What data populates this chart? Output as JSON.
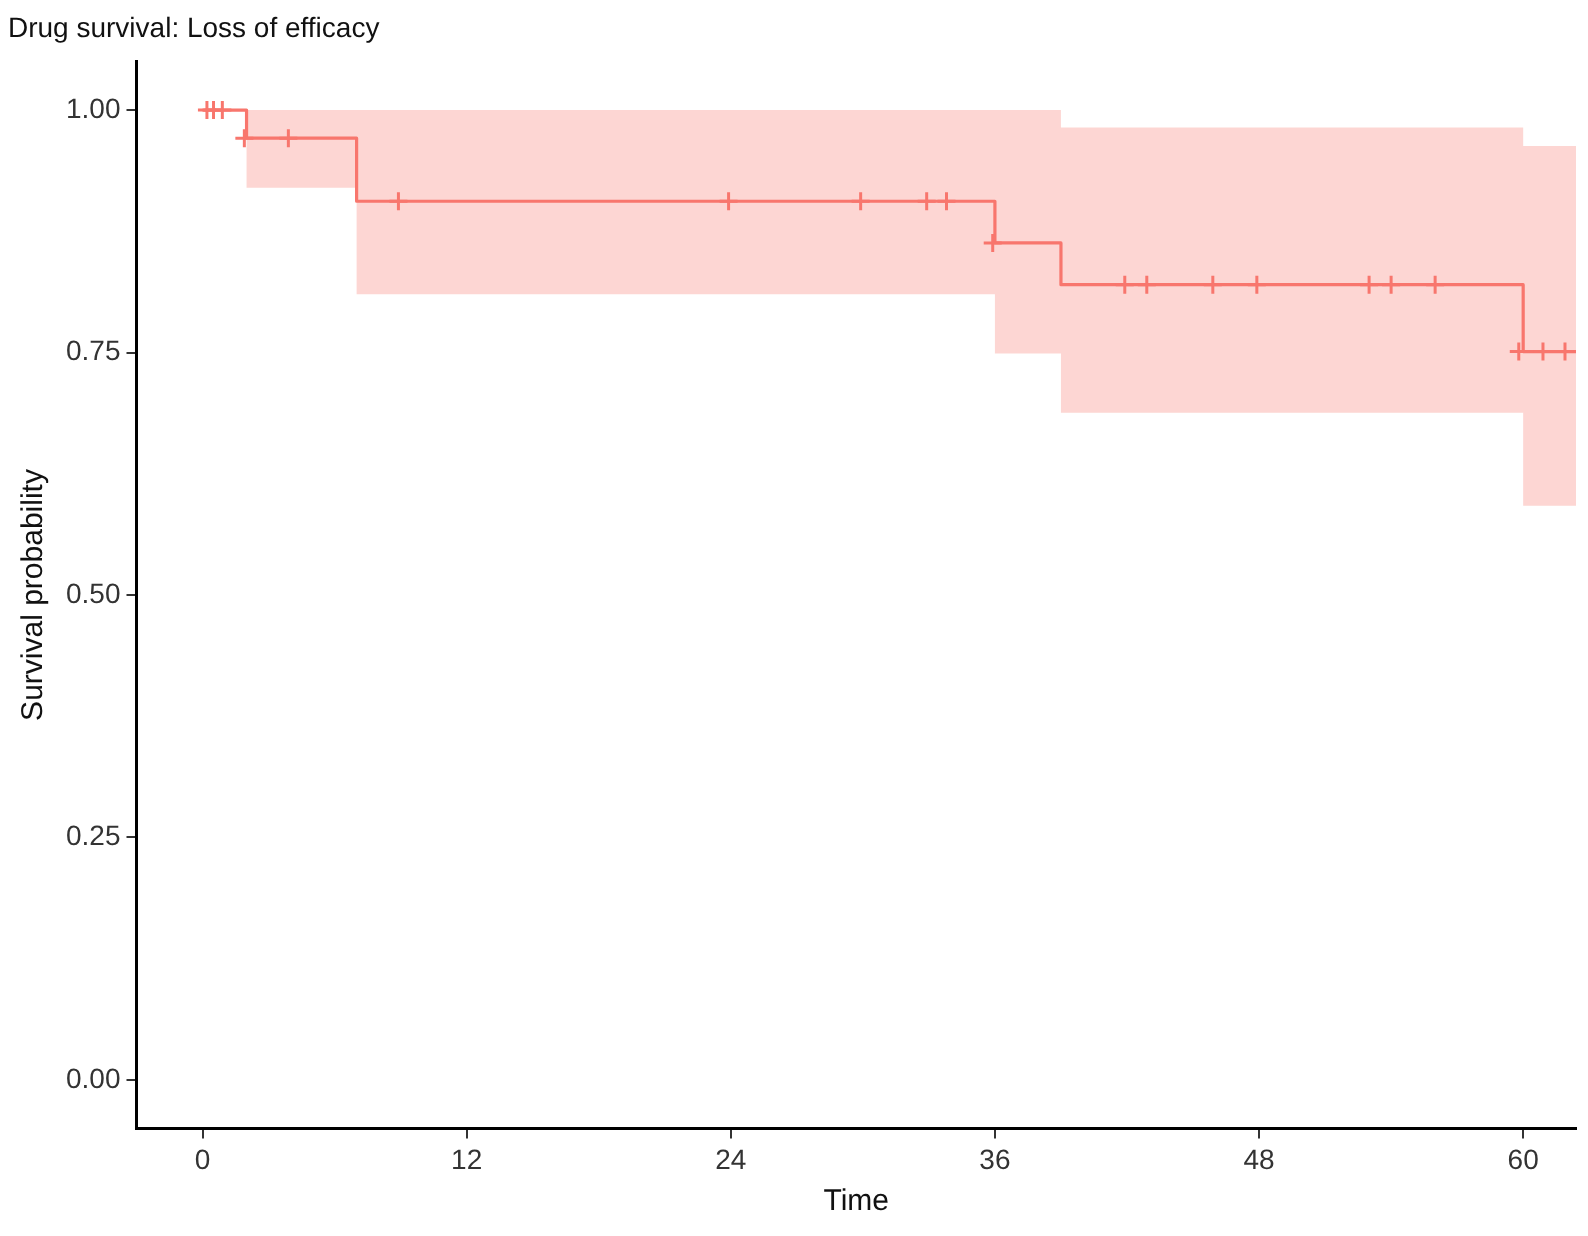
{
  "chart_data": {
    "type": "step",
    "title": "Drug survival: Loss of efficacy",
    "xlabel": "Time",
    "ylabel": "Survival probability",
    "xlim": [
      -3,
      62.4
    ],
    "ylim": [
      -0.05,
      1.05
    ],
    "xticks": [
      0,
      12,
      24,
      36,
      48,
      60
    ],
    "yticks": [
      {
        "value": 0,
        "label": "0.00"
      },
      {
        "value": 0.25,
        "label": "0.25"
      },
      {
        "value": 0.5,
        "label": "0.50"
      },
      {
        "value": 0.75,
        "label": "0.75"
      },
      {
        "value": 1,
        "label": "1.00"
      }
    ],
    "grid": false,
    "legend": false,
    "series": [
      {
        "color": "#f8766d",
        "marker": "none",
        "x": [
          0,
          2,
          7,
          36,
          39,
          60,
          62.4
        ],
        "values": [
          1,
          0.971,
          0.906,
          0.863,
          0.82,
          0.751,
          0.751
        ],
        "lower": [
          1,
          0.92,
          0.81,
          0.749,
          0.688,
          0.592,
          0.592
        ],
        "upper": [
          1,
          1,
          1,
          1,
          0.982,
          0.963,
          0.963
        ]
      },
      {
        "type": "scatter",
        "color": "#f8766d",
        "marker": "cross",
        "x": [
          0.2,
          0.5,
          0.9,
          1.9,
          3.9,
          8.9,
          23.9,
          29.9,
          32.9,
          33.8,
          35.9,
          41.9,
          42.9,
          45.9,
          47.9,
          53,
          54,
          56,
          59.8,
          60.9,
          61.9
        ],
        "values": [
          1,
          1,
          1,
          0.971,
          0.971,
          0.906,
          0.906,
          0.906,
          0.906,
          0.906,
          0.863,
          0.82,
          0.82,
          0.82,
          0.82,
          0.82,
          0.82,
          0.82,
          0.751,
          0.751,
          0.751
        ]
      }
    ]
  }
}
